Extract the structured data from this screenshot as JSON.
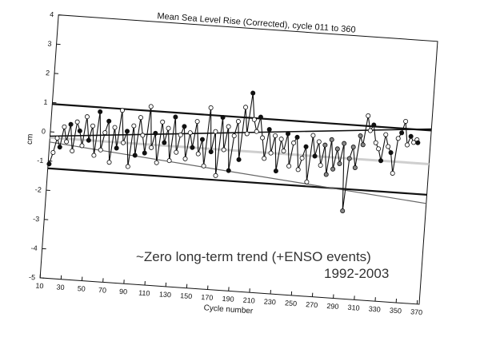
{
  "chart_data": {
    "type": "line",
    "title": "Mean Sea Level Rise (Corrected), cycle 011 to 360",
    "xlabel": "Cycle number",
    "ylabel": "cm",
    "xlim": [
      10,
      372
    ],
    "ylim": [
      -5,
      4
    ],
    "x_ticks": [
      10,
      30,
      50,
      70,
      90,
      110,
      130,
      150,
      170,
      190,
      210,
      230,
      250,
      270,
      290,
      310,
      330,
      350,
      370
    ],
    "y_ticks": [
      -5,
      -4,
      -3,
      -2,
      -1,
      0,
      1,
      2,
      3,
      4
    ],
    "rotation_deg": 4,
    "grid": false,
    "series": [
      {
        "values_x": [
          11,
          14,
          17,
          20,
          23,
          26,
          29,
          32,
          35,
          38,
          41,
          44,
          47,
          50,
          53,
          56,
          59,
          62,
          65,
          68,
          71,
          74,
          77,
          80,
          83,
          86,
          89,
          92,
          95,
          98,
          101,
          104,
          107,
          110,
          113,
          116,
          119,
          122,
          125,
          128,
          131,
          134,
          137,
          140,
          143,
          146,
          149,
          152,
          155,
          158,
          161,
          164,
          167,
          170,
          173,
          176,
          179,
          182,
          185,
          188,
          191,
          194,
          197,
          200,
          203,
          206,
          209,
          212,
          215,
          218,
          221,
          224,
          227,
          230,
          233,
          236,
          239,
          242,
          245,
          248,
          251,
          254,
          257,
          260,
          263,
          266,
          269,
          272,
          275,
          278,
          281,
          284,
          287,
          290,
          293,
          296,
          299,
          302,
          305,
          308,
          311,
          314,
          317,
          320,
          323,
          326,
          329,
          332,
          335,
          338,
          341,
          344,
          347,
          350,
          353,
          356,
          359,
          360
        ],
        "values_y": [
          -1.1,
          -0.7,
          -0.2,
          -0.5,
          0.2,
          -0.3,
          0.3,
          -0.6,
          0.4,
          0.1,
          -0.4,
          0.6,
          -0.2,
          0.3,
          -0.7,
          0.8,
          -0.5,
          0.1,
          0.5,
          -0.9,
          0.3,
          -0.4,
          0.9,
          -0.2,
          0.2,
          -1.0,
          0.4,
          -0.6,
          0.7,
          0.1,
          -0.5,
          1.1,
          -0.3,
          0.2,
          -0.8,
          0.6,
          -0.1,
          0.4,
          -0.7,
          0.8,
          -0.4,
          0.2,
          0.5,
          -0.6,
          0.3,
          -0.2,
          0.7,
          -0.4,
          0.1,
          -0.8,
          1.2,
          -0.3,
          0.4,
          -1.1,
          0.9,
          -0.2,
          0.6,
          -0.9,
          0.3,
          0.8,
          -0.5,
          1.3,
          0.4,
          1.8,
          0.9,
          0.5,
          1.0,
          0.3,
          -0.4,
          0.6,
          -0.2,
          0.4,
          -0.8,
          0.3,
          -0.1,
          0.5,
          -0.6,
          0.2,
          0.4,
          -0.7,
          -0.3,
          0.1,
          -1.1,
          0.5,
          -0.2,
          0.3,
          -0.5,
          0.2,
          -0.8,
          0.4,
          -0.6,
          0.1,
          -0.4,
          0.3,
          -2.0,
          -0.2,
          0.2,
          -0.5,
          0.6,
          0.3,
          1.3,
          0.8,
          1.0,
          0.4,
          0.2,
          -0.2,
          0.7,
          0.3,
          0.1,
          -0.6,
          0.6,
          0.8,
          1.2,
          0.4,
          0.7,
          0.5,
          0.6,
          0.5
        ]
      }
    ],
    "reference_lines": [
      {
        "y_start": 0.95,
        "y_end": 0.95
      },
      {
        "y_start": -1.25,
        "y_end": -1.25
      },
      {
        "y_start": -0.15,
        "y_end": 1.0
      },
      {
        "y_start": -0.35,
        "y_end": -1.55
      }
    ],
    "annotations": [
      "~Zero long-term trend (+ENSO events)",
      "1992-2003"
    ]
  }
}
